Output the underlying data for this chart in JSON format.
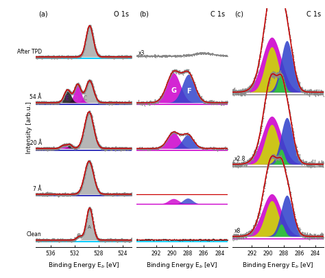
{
  "panel_a_label": "(a)",
  "panel_b_label": "(b)",
  "panel_c_label": "(c)",
  "o1s_label": "O 1s",
  "c1s_label": "C 1s",
  "xlabel": "Binding Energy E$_b$ [eV]",
  "ylabel": "Intensity [arb.u.]",
  "bg_color": "#ffffff",
  "gray_dot": "#888888",
  "red_fit": "#cc0000",
  "cyan_line": "#00ccff",
  "blue_line": "#3333bb",
  "magenta_line": "#cc00cc",
  "gray_line": "#888888",
  "color_gray": "#aaaaaa",
  "color_magenta": "#cc00cc",
  "color_black": "#111111",
  "color_blue": "#3344cc",
  "color_yellow": "#ccdd00",
  "color_green": "#33cc33",
  "row_labels_a": [
    "After TPD",
    "54 Å",
    "20 Å",
    "7 Å",
    "Clean"
  ],
  "mult_labels": [
    "x3",
    "x2.8",
    "x8"
  ]
}
